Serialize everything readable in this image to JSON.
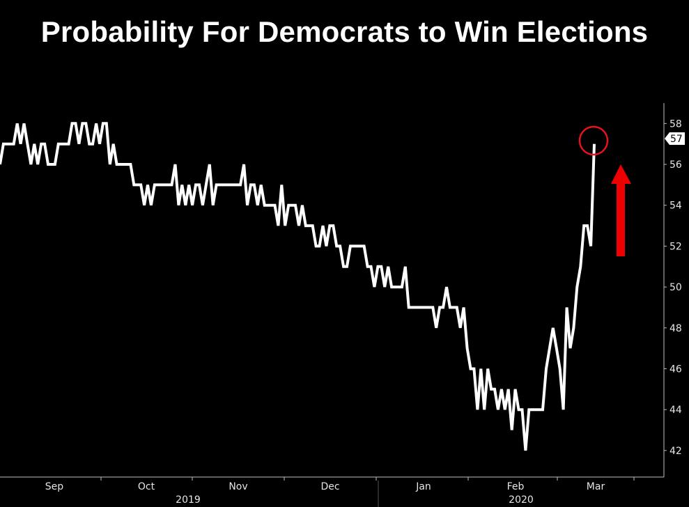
{
  "title": "Probability For Democrats to Win Elections",
  "colors": {
    "background": "#000000",
    "line": "#ffffff",
    "marker": "#e5131c",
    "arrow": "#ee0000",
    "axis": "#bfbfbf"
  },
  "chart_data": {
    "type": "line",
    "title": "Probability For Democrats to Win Elections",
    "xlabel": "",
    "ylabel": "",
    "ylim": [
      40.7,
      59
    ],
    "y_ticks": [
      42,
      44,
      46,
      48,
      50,
      52,
      54,
      56,
      58
    ],
    "y_axis_position": "right",
    "x_tick_labels": [
      "Sep",
      "Oct",
      "Nov",
      "Dec",
      "Jan",
      "Feb",
      "Mar"
    ],
    "year_labels": [
      "2019",
      "2020"
    ],
    "last_value_label": "57",
    "grid": false,
    "legend": "none",
    "series": [
      {
        "values": [
          56,
          57,
          57,
          57,
          57,
          58,
          57,
          58,
          57,
          56,
          57,
          56,
          57,
          57,
          56,
          56,
          56,
          57,
          57,
          57,
          57,
          58,
          58,
          57,
          58,
          58,
          57,
          57,
          58,
          57,
          58,
          58,
          56,
          57,
          56,
          56,
          56,
          56,
          56,
          55,
          55,
          55,
          54,
          55,
          54,
          55,
          55,
          55,
          55,
          55,
          55,
          56,
          54,
          55,
          54,
          55,
          54,
          55,
          55,
          54,
          55,
          56,
          54,
          55,
          55,
          55,
          55,
          55,
          55,
          55,
          55,
          56,
          54,
          55,
          55,
          54,
          55,
          54,
          54,
          54,
          54,
          53,
          55,
          53,
          54,
          54,
          54,
          53,
          54,
          53,
          53,
          53,
          52,
          52,
          53,
          52,
          53,
          53,
          52,
          52,
          51,
          51,
          52,
          52,
          52,
          52,
          52,
          51,
          51,
          50,
          51,
          51,
          50,
          51,
          50,
          50,
          50,
          50,
          51,
          49,
          49,
          49,
          49,
          49,
          49,
          49,
          49,
          48,
          49,
          49,
          50,
          49,
          49,
          49,
          48,
          49,
          47,
          46,
          46,
          44,
          46,
          44,
          46,
          45,
          45,
          44,
          45,
          44,
          45,
          43,
          45,
          44,
          44,
          42,
          44,
          44,
          44,
          44,
          44,
          46,
          47,
          48,
          47,
          46,
          44,
          49,
          47,
          48,
          50,
          51,
          53,
          53,
          52,
          57
        ]
      }
    ]
  }
}
